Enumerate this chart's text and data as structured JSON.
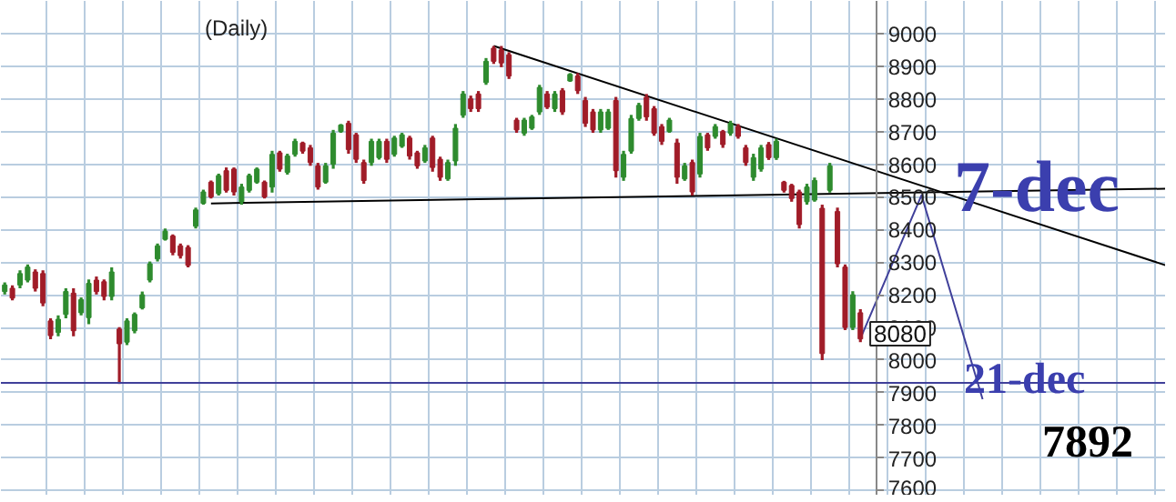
{
  "chart_data": {
    "type": "candlestick",
    "title": "(Daily)",
    "categories": [
      null,
      null,
      null,
      null,
      null,
      null,
      null,
      null,
      null,
      null,
      null,
      null,
      null,
      null,
      null,
      null,
      null,
      null,
      null,
      null,
      null,
      null,
      null,
      null,
      null,
      null,
      null,
      null,
      null,
      null,
      null,
      null,
      null,
      null,
      null,
      null,
      null,
      null,
      null,
      null,
      null,
      null,
      null,
      null,
      null,
      null,
      null,
      null,
      null,
      null,
      null,
      null,
      null,
      null,
      null,
      null,
      null,
      null,
      null,
      null,
      null,
      null,
      null,
      null,
      null,
      null,
      null,
      null,
      null,
      null,
      null,
      null,
      null,
      null,
      null,
      null,
      null,
      null,
      null,
      null,
      null,
      null,
      null,
      null,
      null,
      null,
      null,
      null,
      null,
      null,
      null,
      null,
      null,
      null,
      null,
      null,
      null,
      null,
      null,
      null,
      null,
      null,
      null,
      null,
      null,
      null,
      null,
      null,
      null,
      null,
      null,
      null,
      null,
      null,
      null,
      null,
      null,
      null,
      null,
      null,
      null,
      null,
      null,
      null,
      null,
      null,
      null,
      null,
      null,
      null,
      null,
      null,
      null,
      null,
      null,
      null,
      null,
      null,
      null,
      null,
      null,
      null,
      null,
      null,
      null,
      null,
      null,
      null,
      null,
      null,
      null,
      null,
      null
    ],
    "ohlc": [
      [
        8210,
        8238,
        8201,
        8230
      ],
      [
        8220,
        8229,
        8183,
        8190
      ],
      [
        8230,
        8275,
        8220,
        8265
      ],
      [
        8245,
        8293,
        8238,
        8285
      ],
      [
        8270,
        8278,
        8210,
        8220
      ],
      [
        8265,
        8275,
        8165,
        8175
      ],
      [
        8120,
        8128,
        8064,
        8075
      ],
      [
        8085,
        8137,
        8073,
        8125
      ],
      [
        8140,
        8220,
        8128,
        8210
      ],
      [
        8205,
        8220,
        8073,
        8090
      ],
      [
        8145,
        8192,
        8137,
        8185
      ],
      [
        8130,
        8247,
        8110,
        8235
      ],
      [
        8245,
        8256,
        8201,
        8210
      ],
      [
        8240,
        8247,
        8183,
        8195
      ],
      [
        8195,
        8284,
        8183,
        8270
      ],
      [
        8095,
        8101,
        7927,
        8050
      ],
      [
        8055,
        8128,
        8046,
        8120
      ],
      [
        8090,
        8146,
        8082,
        8140
      ],
      [
        8160,
        8210,
        8155,
        8200
      ],
      [
        8245,
        8302,
        8238,
        8295
      ],
      [
        8310,
        8357,
        8302,
        8350
      ],
      [
        8370,
        8403,
        8366,
        8395
      ],
      [
        8380,
        8385,
        8321,
        8330
      ],
      [
        8350,
        8357,
        8311,
        8320
      ],
      [
        8345,
        8352,
        8284,
        8290
      ],
      [
        8410,
        8467,
        8403,
        8460
      ],
      [
        8480,
        8522,
        8476,
        8515
      ],
      [
        8545,
        8550,
        8495,
        8500
      ],
      [
        8510,
        8571,
        8504,
        8565
      ],
      [
        8580,
        8590,
        8513,
        8520
      ],
      [
        8585,
        8590,
        8504,
        8515
      ],
      [
        8485,
        8540,
        8476,
        8530
      ],
      [
        8520,
        8571,
        8513,
        8565
      ],
      [
        8545,
        8590,
        8540,
        8585
      ],
      [
        8545,
        8550,
        8495,
        8500
      ],
      [
        8530,
        8641,
        8513,
        8630
      ],
      [
        8635,
        8641,
        8577,
        8585
      ],
      [
        8575,
        8632,
        8568,
        8625
      ],
      [
        8630,
        8678,
        8623,
        8670
      ],
      [
        8665,
        8669,
        8632,
        8640
      ],
      [
        8650,
        8659,
        8595,
        8605
      ],
      [
        8595,
        8604,
        8522,
        8530
      ],
      [
        8545,
        8604,
        8540,
        8595
      ],
      [
        8600,
        8705,
        8586,
        8695
      ],
      [
        8700,
        8723,
        8696,
        8720
      ],
      [
        8725,
        8733,
        8632,
        8645
      ],
      [
        8690,
        8696,
        8604,
        8615
      ],
      [
        8605,
        8614,
        8540,
        8550
      ],
      [
        8605,
        8678,
        8595,
        8670
      ],
      [
        8620,
        8678,
        8614,
        8670
      ],
      [
        8670,
        8678,
        8604,
        8615
      ],
      [
        8630,
        8687,
        8623,
        8680
      ],
      [
        8655,
        8696,
        8650,
        8690
      ],
      [
        8680,
        8687,
        8614,
        8625
      ],
      [
        8635,
        8641,
        8586,
        8595
      ],
      [
        8610,
        8659,
        8604,
        8650
      ],
      [
        8680,
        8687,
        8577,
        8590
      ],
      [
        8615,
        8623,
        8549,
        8560
      ],
      [
        8555,
        8614,
        8549,
        8605
      ],
      [
        8610,
        8723,
        8595,
        8710
      ],
      [
        8750,
        8824,
        8742,
        8815
      ],
      [
        8800,
        8810,
        8760,
        8770
      ],
      [
        8815,
        8824,
        8760,
        8770
      ],
      [
        8850,
        8925,
        8843,
        8915
      ],
      [
        8955,
        8962,
        8907,
        8915
      ],
      [
        8950,
        8962,
        8897,
        8910
      ],
      [
        8935,
        8943,
        8861,
        8870
      ],
      [
        8735,
        8742,
        8696,
        8705
      ],
      [
        8695,
        8742,
        8687,
        8735
      ],
      [
        8710,
        8751,
        8705,
        8745
      ],
      [
        8760,
        8843,
        8751,
        8835
      ],
      [
        8815,
        8824,
        8769,
        8775
      ],
      [
        8770,
        8824,
        8760,
        8815
      ],
      [
        8825,
        8833,
        8751,
        8760
      ],
      [
        8855,
        8879,
        8852,
        8875
      ],
      [
        8870,
        8879,
        8815,
        8825
      ],
      [
        8795,
        8806,
        8714,
        8725
      ],
      [
        8760,
        8769,
        8696,
        8705
      ],
      [
        8705,
        8769,
        8696,
        8760
      ],
      [
        8710,
        8769,
        8705,
        8760
      ],
      [
        8795,
        8806,
        8559,
        8580
      ],
      [
        8560,
        8641,
        8549,
        8630
      ],
      [
        8640,
        8751,
        8632,
        8740
      ],
      [
        8740,
        8788,
        8733,
        8780
      ],
      [
        8805,
        8815,
        8733,
        8745
      ],
      [
        8770,
        8778,
        8687,
        8695
      ],
      [
        8715,
        8723,
        8659,
        8670
      ],
      [
        8700,
        8742,
        8696,
        8735
      ],
      [
        8665,
        8678,
        8540,
        8560
      ],
      [
        8555,
        8604,
        8549,
        8595
      ],
      [
        8605,
        8614,
        8504,
        8515
      ],
      [
        8570,
        8696,
        8559,
        8685
      ],
      [
        8690,
        8696,
        8641,
        8650
      ],
      [
        8685,
        8723,
        8678,
        8715
      ],
      [
        8700,
        8705,
        8650,
        8660
      ],
      [
        8695,
        8733,
        8687,
        8725
      ],
      [
        8715,
        8723,
        8678,
        8685
      ],
      [
        8650,
        8659,
        8595,
        8605
      ],
      [
        8560,
        8632,
        8549,
        8620
      ],
      [
        8585,
        8659,
        8577,
        8650
      ],
      [
        8660,
        8668,
        8613,
        8620
      ],
      [
        8620,
        8678,
        8613,
        8670
      ],
      [
        8545,
        8549,
        8513,
        8520
      ],
      [
        8535,
        8540,
        8485,
        8495
      ],
      [
        8515,
        8522,
        8403,
        8415
      ],
      [
        8485,
        8540,
        8476,
        8530
      ],
      [
        8490,
        8559,
        8485,
        8550
      ],
      [
        8465,
        8476,
        8000,
        8020
      ],
      [
        8520,
        8604,
        8513,
        8595
      ],
      [
        8455,
        8467,
        8284,
        8295
      ],
      [
        8285,
        8293,
        8092,
        8100
      ],
      [
        8100,
        8211,
        8092,
        8200
      ],
      [
        8145,
        8156,
        8055,
        8065
      ],
      null,
      null,
      null,
      null,
      null,
      null,
      null,
      null,
      null,
      null,
      null,
      null,
      null,
      null,
      null,
      null,
      null,
      null,
      null,
      null,
      null,
      null,
      null,
      null,
      null,
      null,
      null,
      null,
      null,
      null,
      null,
      null,
      null,
      null,
      null,
      null,
      null,
      null,
      null,
      null
    ],
    "colors": [
      "#2e8b2e",
      "#a01c28",
      "#2e8b2e",
      "#2e8b2e",
      "#a01c28",
      "#a01c28",
      "#a01c28",
      "#2e8b2e",
      "#2e8b2e",
      "#a01c28",
      "#2e8b2e",
      "#2e8b2e",
      "#a01c28",
      "#a01c28",
      "#2e8b2e",
      "#a01c28",
      "#2e8b2e",
      "#2e8b2e",
      "#2e8b2e",
      "#2e8b2e",
      "#2e8b2e",
      "#2e8b2e",
      "#a01c28",
      "#a01c28",
      "#a01c28",
      "#2e8b2e",
      "#2e8b2e",
      "#a01c28",
      "#2e8b2e",
      "#a01c28",
      "#a01c28",
      "#2e8b2e",
      "#2e8b2e",
      "#2e8b2e",
      "#a01c28",
      "#2e8b2e",
      "#a01c28",
      "#2e8b2e",
      "#2e8b2e",
      "#a01c28",
      "#a01c28",
      "#a01c28",
      "#2e8b2e",
      "#2e8b2e",
      "#2e8b2e",
      "#a01c28",
      "#a01c28",
      "#a01c28",
      "#2e8b2e",
      "#2e8b2e",
      "#a01c28",
      "#2e8b2e",
      "#2e8b2e",
      "#a01c28",
      "#a01c28",
      "#2e8b2e",
      "#a01c28",
      "#a01c28",
      "#2e8b2e",
      "#2e8b2e",
      "#2e8b2e",
      "#a01c28",
      "#a01c28",
      "#2e8b2e",
      "#a01c28",
      "#a01c28",
      "#a01c28",
      "#a01c28",
      "#2e8b2e",
      "#2e8b2e",
      "#2e8b2e",
      "#a01c28",
      "#2e8b2e",
      "#a01c28",
      "#2e8b2e",
      "#a01c28",
      "#a01c28",
      "#a01c28",
      "#2e8b2e",
      "#2e8b2e",
      "#a01c28",
      "#2e8b2e",
      "#2e8b2e",
      "#2e8b2e",
      "#a01c28",
      "#a01c28",
      "#a01c28",
      "#2e8b2e",
      "#a01c28",
      "#2e8b2e",
      "#a01c28",
      "#2e8b2e",
      "#a01c28",
      "#2e8b2e",
      "#a01c28",
      "#2e8b2e",
      "#a01c28",
      "#a01c28",
      "#2e8b2e",
      "#2e8b2e",
      "#a01c28",
      "#2e8b2e",
      "#a01c28",
      "#a01c28",
      "#a01c28",
      "#2e8b2e",
      "#2e8b2e",
      "#a01c28",
      "#2e8b2e",
      "#a01c28",
      "#a01c28",
      "#2e8b2e",
      "#a01c28",
      null,
      null,
      null,
      null,
      null,
      null,
      null,
      null,
      null,
      null,
      null,
      null,
      null,
      null,
      null,
      null,
      null,
      null,
      null,
      null,
      null,
      null,
      null,
      null,
      null,
      null,
      null,
      null,
      null,
      null,
      null,
      null,
      null,
      null,
      null,
      null,
      null,
      null,
      null,
      null
    ],
    "series": [
      {
        "type": "line",
        "color": "#000000",
        "values": [
          null,
          null,
          null,
          null,
          null,
          null,
          null,
          null,
          null,
          null,
          null,
          null,
          null,
          null,
          null,
          null,
          null,
          null,
          null,
          null,
          null,
          null,
          null,
          null,
          null,
          null,
          null,
          null,
          null,
          null,
          null,
          null,
          null,
          null,
          null,
          null,
          null,
          null,
          null,
          null,
          null,
          null,
          null,
          null,
          null,
          null,
          null,
          null,
          null,
          null,
          null,
          null,
          null,
          null,
          null,
          null,
          null,
          null,
          null,
          null,
          null,
          null,
          null,
          null,
          8962,
          null,
          null,
          null,
          null,
          null,
          null,
          null,
          null,
          null,
          null,
          null,
          null,
          null,
          null,
          null,
          null,
          null,
          null,
          null,
          null,
          null,
          null,
          null,
          null,
          null,
          null,
          null,
          null,
          null,
          null,
          null,
          null,
          null,
          null,
          null,
          null,
          null,
          null,
          null,
          null,
          null,
          null,
          null,
          null,
          null,
          null,
          null,
          null,
          null,
          null,
          null,
          null,
          null,
          null,
          null,
          null,
          null,
          null,
          null,
          null,
          null,
          null,
          null,
          null,
          null,
          null,
          null,
          null,
          null,
          null,
          null,
          null,
          null,
          null,
          null,
          null,
          null,
          null,
          null,
          null,
          null,
          null,
          null,
          null,
          null,
          null,
          null,
          8290
        ]
      },
      {
        "type": "line",
        "color": "#000000",
        "values": [
          null,
          null,
          null,
          null,
          null,
          null,
          null,
          null,
          null,
          null,
          null,
          null,
          null,
          null,
          null,
          null,
          null,
          null,
          null,
          null,
          null,
          null,
          null,
          null,
          null,
          null,
          null,
          8480,
          null,
          null,
          null,
          null,
          null,
          null,
          null,
          null,
          null,
          null,
          null,
          null,
          null,
          null,
          null,
          null,
          null,
          null,
          null,
          null,
          null,
          null,
          null,
          null,
          null,
          null,
          null,
          null,
          null,
          null,
          null,
          null,
          null,
          null,
          null,
          null,
          null,
          null,
          null,
          null,
          null,
          null,
          null,
          null,
          null,
          null,
          null,
          null,
          null,
          null,
          null,
          null,
          null,
          null,
          null,
          null,
          null,
          null,
          null,
          null,
          null,
          null,
          null,
          null,
          null,
          null,
          null,
          null,
          null,
          null,
          null,
          null,
          null,
          null,
          null,
          null,
          null,
          null,
          null,
          null,
          null,
          null,
          null,
          null,
          null,
          null,
          null,
          null,
          null,
          null,
          null,
          null,
          null,
          null,
          null,
          null,
          null,
          null,
          null,
          null,
          null,
          null,
          null,
          null,
          null,
          null,
          null,
          null,
          null,
          null,
          null,
          null,
          null,
          null,
          null,
          null,
          null,
          null,
          null,
          null,
          null,
          null,
          null,
          null,
          8525
        ]
      },
      {
        "type": "line",
        "color": "#40409a",
        "values": [
          null,
          null,
          null,
          null,
          null,
          null,
          null,
          null,
          null,
          null,
          null,
          null,
          null,
          null,
          null,
          null,
          null,
          null,
          null,
          null,
          null,
          null,
          null,
          null,
          null,
          null,
          null,
          null,
          null,
          null,
          null,
          null,
          null,
          null,
          null,
          null,
          null,
          null,
          null,
          null,
          null,
          null,
          null,
          null,
          null,
          null,
          null,
          null,
          null,
          null,
          null,
          null,
          null,
          null,
          null,
          null,
          null,
          null,
          null,
          null,
          null,
          null,
          null,
          null,
          null,
          null,
          null,
          null,
          null,
          null,
          null,
          null,
          null,
          null,
          null,
          null,
          null,
          null,
          null,
          null,
          null,
          null,
          null,
          null,
          null,
          null,
          null,
          null,
          null,
          null,
          null,
          null,
          null,
          null,
          null,
          null,
          null,
          null,
          null,
          null,
          null,
          null,
          null,
          null,
          null,
          null,
          null,
          null,
          null,
          null,
          null,
          null,
          8066,
          null,
          null,
          null,
          null,
          null,
          null,
          null,
          8505,
          null,
          null,
          null,
          null,
          null,
          null,
          null,
          7880,
          null,
          null,
          null,
          null,
          null,
          null,
          null,
          null,
          null,
          null,
          null,
          null,
          null,
          null,
          null,
          null,
          null,
          null,
          null,
          null,
          null,
          null,
          null,
          null
        ]
      }
    ],
    "ref_lines": [
      {
        "axis": "y",
        "value": 7930,
        "color": "#40409a"
      }
    ],
    "annotations": [
      "7-dec",
      {
        "text": "21-dec",
        "y": 7940
      },
      "7892",
      "8080"
    ],
    "ylim": [
      7585,
      9100
    ],
    "yticks": [
      7600,
      7700,
      7800,
      7900,
      8000,
      8100,
      8200,
      8300,
      8400,
      8500,
      8600,
      8700,
      8800,
      8900,
      9000
    ],
    "tick_labels": "y",
    "grid": true
  }
}
